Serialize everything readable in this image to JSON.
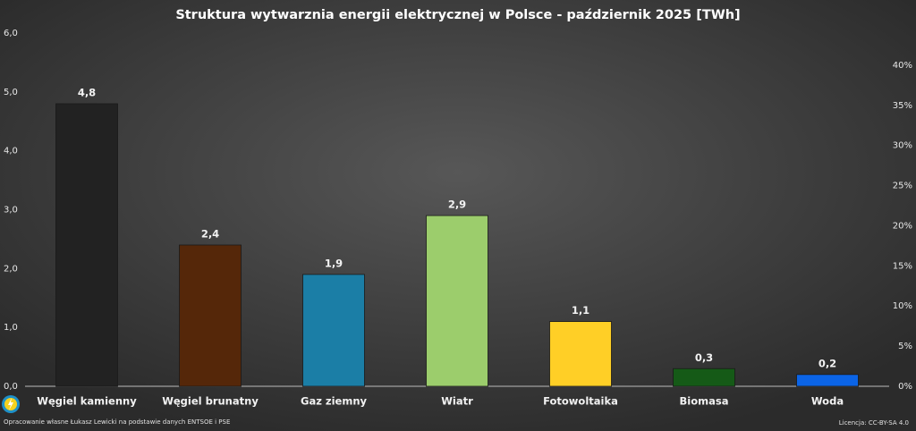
{
  "chart_data": {
    "type": "bar",
    "title": "Struktura wytwarznia energii elektrycznej w Polsce - październik 2025 [TWh]",
    "categories": [
      "Węgiel kamienny",
      "Węgiel brunatny",
      "Gaz ziemny",
      "Wiatr",
      "Fotowoltaika",
      "Biomasa",
      "Woda"
    ],
    "values": [
      4.8,
      2.4,
      1.9,
      2.9,
      1.1,
      0.3,
      0.2
    ],
    "value_labels": [
      "4,8",
      "2,4",
      "1,9",
      "2,9",
      "1,1",
      "0,3",
      "0,2"
    ],
    "colors": [
      "#222222",
      "#552709",
      "#1b7ea6",
      "#9ccd6c",
      "#ffcf26",
      "#155a17",
      "#0b64e6"
    ],
    "ylim": [
      0,
      6
    ],
    "yticks": [
      {
        "value": 0,
        "label": "0,0"
      },
      {
        "value": 1,
        "label": "1,0"
      },
      {
        "value": 2,
        "label": "2,0"
      },
      {
        "value": 3,
        "label": "3,0"
      },
      {
        "value": 4,
        "label": "4,0"
      },
      {
        "value": 5,
        "label": "5,0"
      },
      {
        "value": 6,
        "label": "6,0"
      }
    ],
    "y2lim": [
      0,
      44
    ],
    "y2ticks": [
      {
        "value": 0,
        "label": "0%"
      },
      {
        "value": 5,
        "label": "5%"
      },
      {
        "value": 10,
        "label": "10%"
      },
      {
        "value": 15,
        "label": "15%"
      },
      {
        "value": 20,
        "label": "20%"
      },
      {
        "value": 25,
        "label": "25%"
      },
      {
        "value": 30,
        "label": "30%"
      },
      {
        "value": 35,
        "label": "35%"
      },
      {
        "value": 40,
        "label": "40%"
      }
    ],
    "grid": false,
    "source": "Opracowanie własne Łukasz Lewicki na podstawie danych ENTSOE i PSE",
    "license": "Licencja: CC-BY-SA 4.0"
  }
}
